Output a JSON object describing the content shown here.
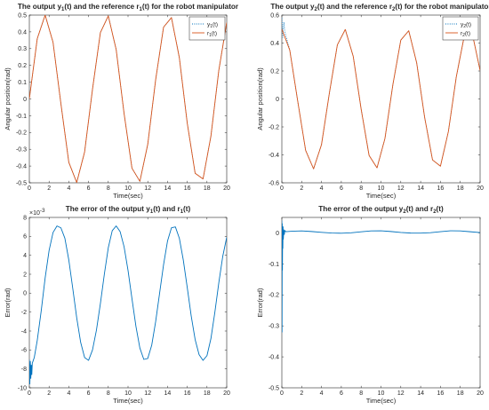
{
  "chart_data": [
    {
      "type": "line",
      "title": "The output y1(t) and the reference r1(t) for the robot manipulator",
      "title_parts": {
        "a": "The output y",
        "b": "(t) and the reference r",
        "c": "(t) for the robot manipulator",
        "sub1": "1",
        "sub2": "1"
      },
      "xlabel": "Time(sec)",
      "ylabel": "Angular position(rad)",
      "xlim": [
        0,
        20
      ],
      "ylim": [
        -0.5,
        0.5
      ],
      "xticks": [
        0,
        2,
        4,
        6,
        8,
        10,
        12,
        14,
        16,
        18,
        20
      ],
      "yticks": [
        -0.5,
        -0.4,
        -0.3,
        -0.2,
        -0.1,
        0,
        0.1,
        0.2,
        0.3,
        0.4,
        0.5
      ],
      "ytick_labels": [
        "-0.5",
        "-0.4",
        "-0.3",
        "-0.2",
        "-0.1",
        "0",
        "0.1",
        "0.2",
        "0.3",
        "0.4",
        "0.5"
      ],
      "legend_position": "top-right",
      "grid": false,
      "series": [
        {
          "name": "y1(t)",
          "name_base": "y",
          "name_sub": "1",
          "name_tail": "(t)",
          "color": "#0072BD",
          "style": "dotted",
          "x": [
            0,
            0.8,
            1.6,
            2.4,
            3.2,
            4.0,
            4.8,
            5.6,
            6.4,
            7.2,
            8.0,
            8.8,
            9.6,
            10.4,
            11.2,
            12.0,
            12.8,
            13.6,
            14.4,
            15.2,
            16.0,
            16.8,
            17.6,
            18.4,
            19.2,
            20.0
          ],
          "y": [
            0,
            0.359,
            0.5,
            0.338,
            -0.029,
            -0.378,
            -0.498,
            -0.316,
            0.058,
            0.396,
            0.495,
            0.294,
            -0.087,
            -0.413,
            -0.491,
            -0.27,
            0.115,
            0.428,
            0.485,
            0.246,
            -0.144,
            -0.443,
            -0.477,
            -0.221,
            0.171,
            0.456
          ]
        },
        {
          "name": "r1(t)",
          "name_base": "r",
          "name_sub": "1",
          "name_tail": "(t)",
          "color": "#D95319",
          "style": "solid",
          "x": [
            0,
            0.8,
            1.6,
            2.4,
            3.2,
            4.0,
            4.8,
            5.6,
            6.4,
            7.2,
            8.0,
            8.8,
            9.6,
            10.4,
            11.2,
            12.0,
            12.8,
            13.6,
            14.4,
            15.2,
            16.0,
            16.8,
            17.6,
            18.4,
            19.2,
            20.0
          ],
          "y": [
            0,
            0.359,
            0.5,
            0.338,
            -0.029,
            -0.378,
            -0.498,
            -0.316,
            0.058,
            0.396,
            0.495,
            0.294,
            -0.087,
            -0.413,
            -0.491,
            -0.27,
            0.115,
            0.428,
            0.485,
            0.246,
            -0.144,
            -0.443,
            -0.477,
            -0.221,
            0.171,
            0.456
          ]
        }
      ]
    },
    {
      "type": "line",
      "title": "The output y2(t) and the reference r2(t) for the robot manipulator",
      "title_parts": {
        "a": "The output y",
        "b": "(t) and the reference r",
        "c": "(t) for the robot manipulator",
        "sub1": "2",
        "sub2": "2"
      },
      "xlabel": "Time(sec)",
      "ylabel": "Angular position(rad)",
      "xlim": [
        0,
        20
      ],
      "ylim": [
        -0.6,
        0.6
      ],
      "xticks": [
        0,
        2,
        4,
        6,
        8,
        10,
        12,
        14,
        16,
        18,
        20
      ],
      "yticks": [
        -0.6,
        -0.4,
        -0.2,
        0,
        0.2,
        0.4,
        0.6
      ],
      "ytick_labels": [
        "-0.6",
        "-0.4",
        "-0.2",
        "0",
        "0.2",
        "0.4",
        "0.6"
      ],
      "legend_position": "top-right",
      "grid": false,
      "series": [
        {
          "name": "y2(t)",
          "name_base": "y",
          "name_sub": "2",
          "name_tail": "(t)",
          "color": "#0072BD",
          "style": "dotted",
          "x": [
            0,
            0.1,
            0.2,
            0.3,
            0.8,
            1.6,
            2.4,
            3.2,
            4.0,
            4.8,
            5.6,
            6.4,
            7.2,
            8.0,
            8.8,
            9.6,
            10.4,
            11.2,
            12.0,
            12.8,
            13.6,
            14.4,
            15.2,
            16.0,
            16.8,
            17.6,
            18.4,
            19.2,
            20.0
          ],
          "y": [
            0.58,
            0.44,
            0.55,
            0.48,
            0.349,
            -0.015,
            -0.368,
            -0.5,
            -0.327,
            0.044,
            0.387,
            0.497,
            0.305,
            -0.073,
            -0.404,
            -0.493,
            -0.283,
            0.102,
            0.421,
            0.488,
            0.259,
            -0.13,
            -0.436,
            -0.481,
            -0.233,
            0.159,
            0.45,
            0.472,
            0.204
          ]
        },
        {
          "name": "r2(t)",
          "name_base": "r",
          "name_sub": "2",
          "name_tail": "(t)",
          "color": "#D95319",
          "style": "solid",
          "x": [
            0,
            0.8,
            1.6,
            2.4,
            3.2,
            4.0,
            4.8,
            5.6,
            6.4,
            7.2,
            8.0,
            8.8,
            9.6,
            10.4,
            11.2,
            12.0,
            12.8,
            13.6,
            14.4,
            15.2,
            16.0,
            16.8,
            17.6,
            18.4,
            19.2,
            20.0
          ],
          "y": [
            0.5,
            0.349,
            -0.015,
            -0.368,
            -0.5,
            -0.327,
            0.044,
            0.387,
            0.497,
            0.305,
            -0.073,
            -0.404,
            -0.493,
            -0.283,
            0.102,
            0.421,
            0.488,
            0.259,
            -0.13,
            -0.436,
            -0.481,
            -0.233,
            0.159,
            0.45,
            0.472,
            0.204
          ]
        }
      ]
    },
    {
      "type": "line",
      "title": "The error of the output y1(t) and r1(t)",
      "title_parts": {
        "a": "The error of the output y",
        "b": "(t) and r",
        "c": "(t)",
        "sub1": "1",
        "sub2": "1"
      },
      "xlabel": "Time(sec)",
      "ylabel": "Error(rad)",
      "y_exponent": "-3",
      "xlim": [
        0,
        20
      ],
      "ylim": [
        -10,
        8
      ],
      "xticks": [
        0,
        2,
        4,
        6,
        8,
        10,
        12,
        14,
        16,
        18,
        20
      ],
      "yticks": [
        -10,
        -8,
        -6,
        -4,
        -2,
        0,
        2,
        4,
        6,
        8
      ],
      "ytick_labels": [
        "-10",
        "-8",
        "-6",
        "-4",
        "-2",
        "0",
        "2",
        "4",
        "6",
        "8"
      ],
      "grid": false,
      "series": [
        {
          "color": "#0072BD",
          "style": "solid",
          "x": [
            0,
            0.05,
            0.1,
            0.15,
            0.2,
            0.25,
            0.3,
            0.4,
            0.5,
            0.8,
            1.2,
            1.6,
            2.0,
            2.4,
            2.8,
            3.2,
            3.6,
            4.0,
            4.4,
            4.8,
            5.2,
            5.6,
            6.0,
            6.4,
            6.8,
            7.2,
            7.6,
            8.0,
            8.4,
            8.8,
            9.2,
            9.6,
            10.0,
            10.4,
            10.8,
            11.2,
            11.6,
            12.0,
            12.4,
            12.8,
            13.2,
            13.6,
            14.0,
            14.4,
            14.8,
            15.2,
            15.6,
            16.0,
            16.4,
            16.8,
            17.2,
            17.6,
            18.0,
            18.4,
            18.8,
            19.2,
            19.6,
            20.0
          ],
          "y": [
            -7.0,
            -9.6,
            -7.2,
            -9.0,
            -7.6,
            -8.6,
            -7.4,
            -7.1,
            -6.8,
            -5.0,
            -1.9,
            1.6,
            4.5,
            6.4,
            7.1,
            6.9,
            5.8,
            3.5,
            0.5,
            -2.6,
            -5.2,
            -6.8,
            -7.1,
            -6.0,
            -3.9,
            -1.1,
            2.0,
            4.8,
            6.6,
            7.1,
            6.5,
            4.9,
            2.4,
            -0.6,
            -3.5,
            -5.8,
            -7.0,
            -6.9,
            -5.5,
            -3.0,
            0.0,
            3.0,
            5.5,
            6.9,
            7.0,
            5.8,
            3.5,
            0.6,
            -2.4,
            -4.9,
            -6.5,
            -7.1,
            -6.6,
            -4.8,
            -2.0,
            1.1,
            3.9,
            5.9
          ]
        }
      ]
    },
    {
      "type": "line",
      "title": "The error of the output y2(t) and r2(t)",
      "title_parts": {
        "a": "The error of the output y",
        "b": "(t) and r",
        "c": "(t)",
        "sub1": "2",
        "sub2": "2"
      },
      "xlabel": "Time(sec)",
      "ylabel": "Error(rad)",
      "xlim": [
        0,
        20
      ],
      "ylim": [
        -0.5,
        0.05
      ],
      "xticks": [
        0,
        2,
        4,
        6,
        8,
        10,
        12,
        14,
        16,
        18,
        20
      ],
      "yticks": [
        -0.5,
        -0.4,
        -0.3,
        -0.2,
        -0.1,
        0
      ],
      "ytick_labels": [
        "-0.5",
        "-0.4",
        "-0.3",
        "-0.2",
        "-0.1",
        "0"
      ],
      "grid": false,
      "series": [
        {
          "color": "#0072BD",
          "style": "solid",
          "x": [
            0,
            0.02,
            0.04,
            0.06,
            0.08,
            0.1,
            0.12,
            0.15,
            0.2,
            0.25,
            0.3,
            0.4,
            1.0,
            2.0,
            3.0,
            4.0,
            5.0,
            6.0,
            7.0,
            8.0,
            9.0,
            10.0,
            11.0,
            12.0,
            13.0,
            14.0,
            15.0,
            16.0,
            17.0,
            18.0,
            19.0,
            20.0
          ],
          "y": [
            0.04,
            -0.32,
            0.03,
            -0.12,
            0.02,
            -0.05,
            0.02,
            -0.02,
            0.01,
            -0.005,
            0.008,
            0.004,
            0.0055,
            0.0065,
            0.0045,
            0.0018,
            -0.0003,
            -0.001,
            0.0003,
            0.0035,
            0.0065,
            0.0068,
            0.0045,
            0.0015,
            -0.0005,
            -0.0008,
            0.0008,
            0.004,
            0.0068,
            0.0065,
            0.0038,
            0.001
          ]
        }
      ]
    }
  ]
}
